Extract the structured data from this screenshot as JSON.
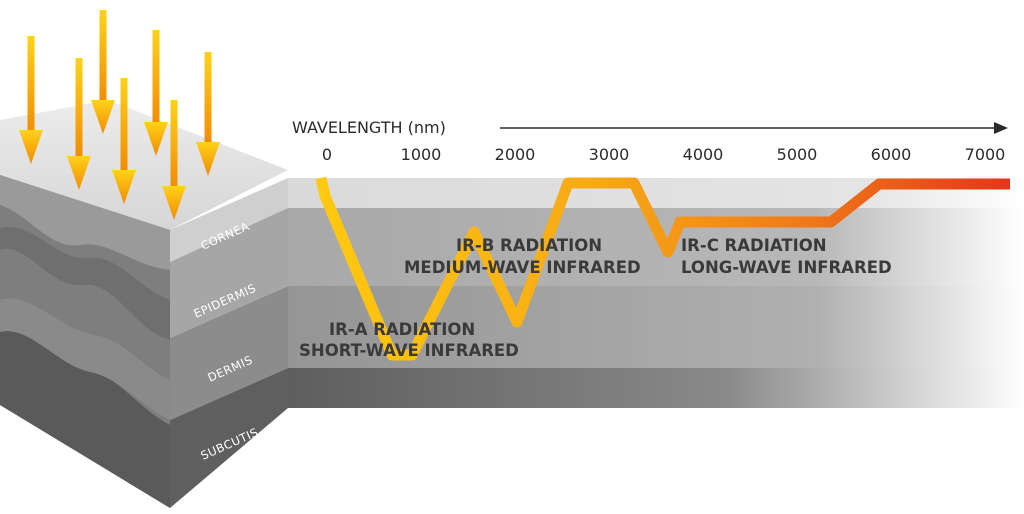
{
  "axis": {
    "title": "WAVELENGTH (nm)",
    "ticks": [
      "0",
      "1000",
      "2000",
      "3000",
      "4000",
      "5000",
      "6000",
      "7000"
    ]
  },
  "layers": {
    "cornea": "CORNEA",
    "epidermis": "EPIDERMIS",
    "dermis": "DERMIS",
    "subcutis": "SUBCUTIS"
  },
  "radiation": {
    "ir_a": {
      "name": "IR-A RADIATION",
      "desc": "SHORT-WAVE INFRARED"
    },
    "ir_b": {
      "name": "IR-B RADIATION",
      "desc": "MEDIUM-WAVE INFRARED"
    },
    "ir_c": {
      "name": "IR-C RADIATION",
      "desc": "LONG-WAVE INFRARED"
    }
  },
  "colors": {
    "arrow": "#f5a00f",
    "curve_start": "#ffc20e",
    "curve_end": "#e8401c",
    "cornea_layer": "#dcdcdc",
    "epidermis_layer": "#a9a9a9",
    "dermis_layer": "#8f8f8f",
    "subcutis_layer": "#616161"
  }
}
